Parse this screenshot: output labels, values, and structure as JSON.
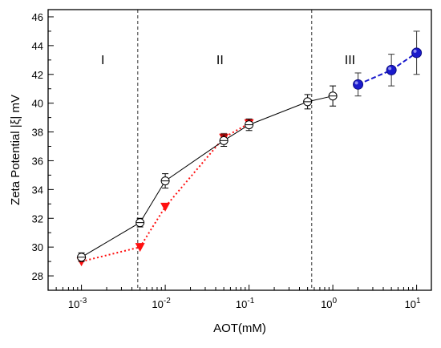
{
  "chart_data": {
    "type": "line",
    "xlabel": "AOT(mM)",
    "ylabel": "Zeta Potential |ξ| mV",
    "x_scale": "log",
    "xlim": [
      0.0004,
      15
    ],
    "ylim": [
      27,
      46.5
    ],
    "x_ticks": [
      {
        "value": 0.001,
        "base": "10",
        "exp": "-3"
      },
      {
        "value": 0.01,
        "base": "10",
        "exp": "-2"
      },
      {
        "value": 0.1,
        "base": "10",
        "exp": "-1"
      },
      {
        "value": 1,
        "base": "10",
        "exp": "0"
      },
      {
        "value": 10,
        "base": "10",
        "exp": "1"
      }
    ],
    "y_ticks": [
      28,
      30,
      32,
      34,
      36,
      38,
      40,
      42,
      44,
      46
    ],
    "grid": false,
    "legend": "none",
    "region_boundaries": [
      0.0047,
      0.56
    ],
    "regions": [
      {
        "label": "I",
        "x": 0.0018,
        "y": 42.7
      },
      {
        "label": "II",
        "x": 0.045,
        "y": 42.7
      },
      {
        "label": "III",
        "x": 1.6,
        "y": 42.7
      }
    ],
    "series": [
      {
        "style": "solid-black-open-circle",
        "x": [
          0.001,
          0.005,
          0.01,
          0.05,
          0.1,
          0.5,
          1
        ],
        "y": [
          29.3,
          31.7,
          34.6,
          37.4,
          38.5,
          40.1,
          40.5
        ],
        "yerr": [
          0.3,
          0.3,
          0.5,
          0.4,
          0.4,
          0.5,
          0.7
        ]
      },
      {
        "style": "dotted-red-triangle",
        "x": [
          0.001,
          0.005,
          0.01,
          0.05,
          0.1
        ],
        "y": [
          29.0,
          30.0,
          32.8,
          37.6,
          38.6
        ],
        "yerr": [
          0,
          0,
          0,
          0.3,
          0.3
        ]
      },
      {
        "style": "dashed-blue-filled-circle",
        "x": [
          2,
          5,
          10
        ],
        "y": [
          41.3,
          42.3,
          43.5
        ],
        "yerr": [
          0.8,
          1.1,
          1.5
        ]
      }
    ],
    "colors": {
      "solid": "#000000",
      "red": "#ff1010",
      "blue": "#1a1acc",
      "divider": "#333333"
    }
  }
}
